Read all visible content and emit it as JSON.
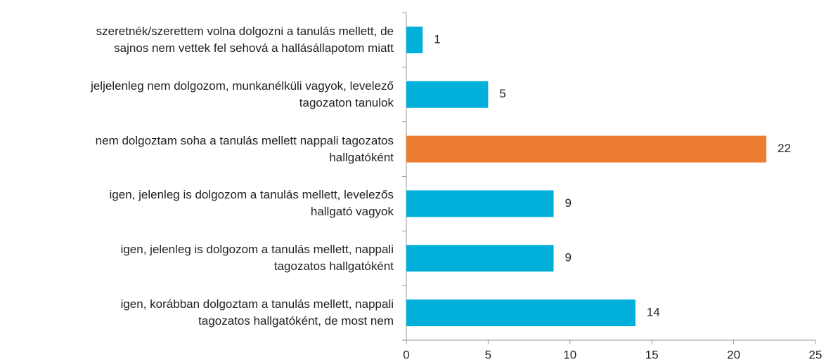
{
  "chart_data": {
    "type": "barh",
    "categories": [
      "szeretnék/szerettem volna dolgozni a tanulás mellett, de\nsajnos nem vettek fel sehová a hallásállapotom miatt",
      "jeljelenleg nem dolgozom, munkanélküli vagyok, levelező\ntagozaton tanulok",
      "nem dolgoztam soha a tanulás mellett nappali tagozatos\nhallgatóként",
      "igen, jelenleg is dolgozom a tanulás mellett, levelezős\nhallgató vagyok",
      "igen, jelenleg is dolgozom a tanulás mellett, nappali\ntagozatos hallgatóként",
      "igen, korábban dolgoztam a tanulás mellett, nappali\ntagozatos hallgatóként, de most nem"
    ],
    "values": [
      1,
      5,
      22,
      9,
      9,
      14
    ],
    "colors": [
      "#00b0da",
      "#00b0da",
      "#ed7d31",
      "#00b0da",
      "#00b0da",
      "#00b0da"
    ],
    "xlim": [
      0,
      25
    ],
    "xticks": [
      0,
      5,
      10,
      15,
      20,
      25
    ],
    "grid": false
  }
}
